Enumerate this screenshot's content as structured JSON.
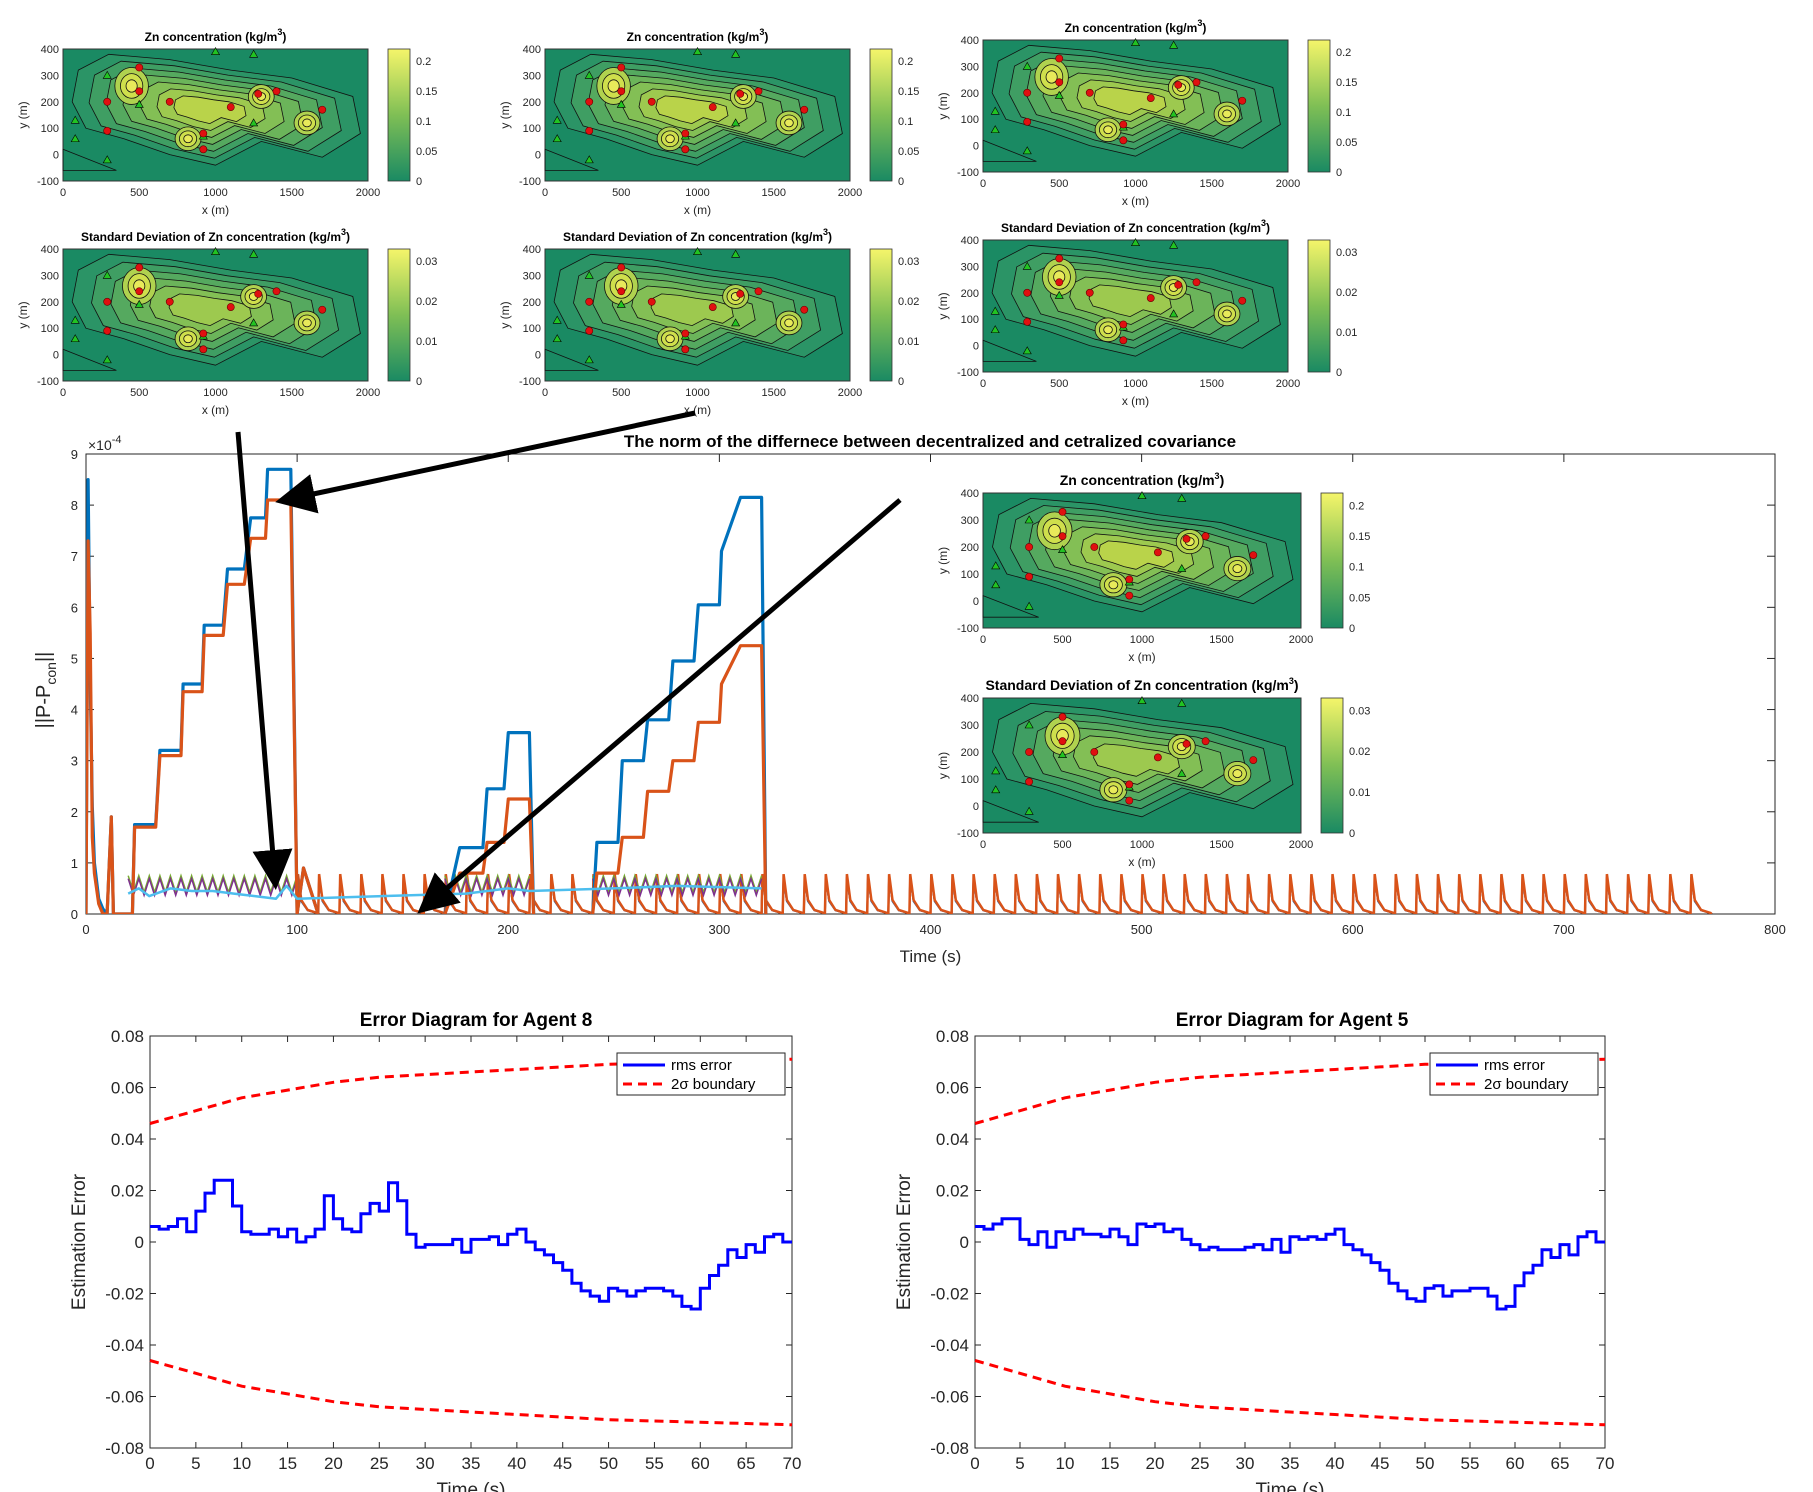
{
  "main_plot": {
    "title": "The norm of the differnece between decentralized and cetralized covariance",
    "exponent_label": "×10",
    "exponent_power": "-4",
    "ylabel_main": "||P-P",
    "ylabel_sub": "con",
    "ylabel_end": "||",
    "xlabel": "Time (s)",
    "xticks": [
      "0",
      "100",
      "200",
      "300",
      "400",
      "500",
      "600",
      "700",
      "800"
    ],
    "yticks": [
      "0",
      "1",
      "2",
      "3",
      "4",
      "5",
      "6",
      "7",
      "8",
      "9"
    ]
  },
  "chart_data": [
    {
      "type": "line",
      "title": "The norm of the differnece between decentralized and cetralized covariance",
      "xlabel": "Time (s)",
      "ylabel": "||P-Pcon||",
      "y_scale_factor": "1e-4",
      "xlim": [
        0,
        800
      ],
      "ylim": [
        0,
        9
      ],
      "grid": false,
      "series": [
        {
          "color": "#0072BD",
          "x": [
            0,
            1,
            2,
            3,
            4,
            6,
            8,
            10,
            12,
            13,
            15,
            18,
            22,
            23,
            33,
            35,
            45,
            46,
            55,
            56,
            65,
            67,
            75,
            78,
            85,
            86,
            97,
            100,
            103,
            110
          ],
          "y": [
            0,
            8.5,
            4.6,
            2.1,
            1.0,
            0.3,
            0.1,
            0,
            1.9,
            0,
            0,
            0,
            0,
            1.75,
            1.75,
            3.2,
            3.2,
            4.5,
            4.5,
            5.65,
            5.65,
            6.75,
            6.75,
            7.75,
            7.75,
            8.7,
            8.7,
            0,
            0.9,
            0
          ]
        },
        {
          "color": "#D95319",
          "x": [
            0,
            1,
            2,
            3,
            4,
            6,
            8,
            10,
            12,
            13,
            15,
            18,
            22,
            23,
            33,
            35,
            45,
            46,
            55,
            56,
            65,
            67,
            75,
            78,
            85,
            86,
            97,
            100,
            103,
            110
          ],
          "y": [
            0,
            7.3,
            5.5,
            1.5,
            0.8,
            0.2,
            0,
            0,
            1.9,
            0,
            0,
            0,
            0,
            1.7,
            1.7,
            3.1,
            3.1,
            4.35,
            4.35,
            5.45,
            5.45,
            6.45,
            6.45,
            7.35,
            7.35,
            8.1,
            8.1,
            0,
            0.9,
            0
          ]
        },
        {
          "color": "#0072BD",
          "x": [
            170,
            177,
            188,
            190,
            198,
            200,
            210,
            212
          ],
          "y": [
            0,
            1.3,
            1.3,
            2.45,
            2.45,
            3.55,
            3.55,
            0
          ]
        },
        {
          "color": "#D95319",
          "x": [
            170,
            177,
            188,
            190,
            198,
            200,
            210,
            212
          ],
          "y": [
            0,
            0.8,
            0.8,
            1.4,
            1.4,
            2.25,
            2.25,
            0
          ]
        },
        {
          "color": "#0072BD",
          "x": [
            240,
            242,
            252,
            254,
            264,
            266,
            276,
            278,
            288,
            290,
            300,
            301,
            310,
            320,
            322
          ],
          "y": [
            0,
            1.4,
            1.4,
            3.0,
            3.0,
            3.8,
            3.8,
            4.95,
            4.95,
            6.05,
            6.05,
            7.1,
            8.15,
            8.15,
            0
          ]
        },
        {
          "color": "#D95319",
          "x": [
            240,
            242,
            252,
            254,
            264,
            266,
            276,
            278,
            288,
            290,
            300,
            301,
            310,
            320,
            322
          ],
          "y": [
            0,
            0.8,
            0.8,
            1.5,
            1.5,
            2.4,
            2.4,
            3.0,
            3.0,
            3.75,
            3.75,
            4.5,
            5.25,
            5.25,
            0
          ]
        },
        {
          "color": "#4DBEEE",
          "x": [
            20,
            25,
            30,
            40,
            50,
            60,
            70,
            80,
            90,
            95,
            100,
            180,
            200,
            210,
            250,
            280,
            320
          ],
          "y": [
            0.4,
            0.5,
            0.35,
            0.5,
            0.45,
            0.45,
            0.4,
            0.35,
            0.3,
            0.55,
            0.3,
            0.4,
            0.5,
            0.45,
            0.5,
            0.55,
            0.5
          ]
        },
        {
          "color": "#D95319",
          "x": [
            330,
            770
          ],
          "y": [
            0.5,
            0.5
          ],
          "note": "repeating spikes every 10 s"
        }
      ]
    },
    {
      "type": "line",
      "title": "Error Diagram for Agent 8",
      "xlabel": "Time (s)",
      "ylabel": "Estimation Error",
      "xlim": [
        0,
        70
      ],
      "ylim": [
        -0.08,
        0.08
      ],
      "legend_position": "top-right",
      "series": [
        {
          "name": "rms error",
          "color": "#0000FF",
          "x": [
            0,
            1,
            2,
            3,
            4,
            5,
            6,
            7,
            8,
            9,
            10,
            11,
            12,
            13,
            14,
            15,
            16,
            17,
            18,
            19,
            20,
            21,
            22,
            23,
            24,
            25,
            26,
            27,
            28,
            29,
            30,
            31,
            32,
            33,
            34,
            35,
            36,
            37,
            38,
            39,
            40,
            41,
            42,
            43,
            44,
            45,
            46,
            47,
            48,
            49,
            50,
            51,
            52,
            53,
            54,
            55,
            56,
            57,
            58,
            59,
            60,
            61,
            62,
            63,
            64,
            65,
            66,
            67,
            68,
            69,
            70
          ],
          "y": [
            0.006,
            0.005,
            0.006,
            0.009,
            0.004,
            0.012,
            0.019,
            0.024,
            0.024,
            0.014,
            0.004,
            0.003,
            0.003,
            0.005,
            0.002,
            0.005,
            0.0,
            0.002,
            0.005,
            0.018,
            0.009,
            0.005,
            0.004,
            0.011,
            0.015,
            0.012,
            0.023,
            0.016,
            0.003,
            -0.002,
            -0.001,
            -0.001,
            -0.001,
            0.001,
            -0.004,
            0.001,
            0.001,
            0.002,
            -0.001,
            0.003,
            0.005,
            0.0,
            -0.003,
            -0.005,
            -0.008,
            -0.011,
            -0.016,
            -0.019,
            -0.021,
            -0.023,
            -0.018,
            -0.019,
            -0.021,
            -0.019,
            -0.018,
            -0.018,
            -0.019,
            -0.021,
            -0.025,
            -0.026,
            -0.018,
            -0.013,
            -0.009,
            -0.003,
            -0.006,
            -0.001,
            -0.004,
            0.002,
            0.003,
            0.0,
            0.0
          ]
        },
        {
          "name": "2σ boundary",
          "color": "#FF0000",
          "dashed": true,
          "x": [
            0,
            5,
            10,
            15,
            20,
            25,
            30,
            35,
            40,
            45,
            50,
            55,
            60,
            65,
            70
          ],
          "y": [
            0.046,
            0.051,
            0.056,
            0.059,
            0.062,
            0.064,
            0.065,
            0.066,
            0.067,
            0.068,
            0.069,
            0.0695,
            0.07,
            0.0705,
            0.071
          ]
        },
        {
          "color": "#FF0000",
          "dashed": true,
          "x": [
            0,
            5,
            10,
            15,
            20,
            25,
            30,
            35,
            40,
            45,
            50,
            55,
            60,
            65,
            70
          ],
          "y": [
            -0.046,
            -0.051,
            -0.056,
            -0.059,
            -0.062,
            -0.064,
            -0.065,
            -0.066,
            -0.067,
            -0.068,
            -0.069,
            -0.0695,
            -0.07,
            -0.0705,
            -0.071
          ]
        }
      ]
    },
    {
      "type": "line",
      "title": "Error Diagram for Agent 5",
      "xlabel": "Time (s)",
      "ylabel": "Estimation Error",
      "xlim": [
        0,
        70
      ],
      "ylim": [
        -0.08,
        0.08
      ],
      "legend_position": "top-right",
      "series": [
        {
          "name": "rms error",
          "color": "#0000FF",
          "x": [
            0,
            1,
            2,
            3,
            4,
            5,
            6,
            7,
            8,
            9,
            10,
            11,
            12,
            13,
            14,
            15,
            16,
            17,
            18,
            19,
            20,
            21,
            22,
            23,
            24,
            25,
            26,
            27,
            28,
            29,
            30,
            31,
            32,
            33,
            34,
            35,
            36,
            37,
            38,
            39,
            40,
            41,
            42,
            43,
            44,
            45,
            46,
            47,
            48,
            49,
            50,
            51,
            52,
            53,
            54,
            55,
            56,
            57,
            58,
            59,
            60,
            61,
            62,
            63,
            64,
            65,
            66,
            67,
            68,
            69,
            70
          ],
          "y": [
            0.006,
            0.005,
            0.007,
            0.009,
            0.009,
            0.001,
            -0.001,
            0.004,
            -0.002,
            0.004,
            0.001,
            0.005,
            0.003,
            0.003,
            0.002,
            0.005,
            0.002,
            -0.001,
            0.007,
            0.006,
            0.007,
            0.004,
            0.005,
            0.001,
            -0.001,
            -0.003,
            -0.002,
            -0.003,
            -0.003,
            -0.003,
            -0.002,
            -0.001,
            -0.003,
            0.001,
            -0.004,
            0.002,
            0.001,
            0.002,
            0.001,
            0.003,
            0.005,
            -0.001,
            -0.003,
            -0.005,
            -0.008,
            -0.011,
            -0.016,
            -0.019,
            -0.022,
            -0.023,
            -0.018,
            -0.017,
            -0.021,
            -0.019,
            -0.019,
            -0.018,
            -0.018,
            -0.021,
            -0.026,
            -0.025,
            -0.017,
            -0.012,
            -0.009,
            -0.003,
            -0.006,
            -0.001,
            -0.005,
            0.002,
            0.004,
            0.0,
            0.0
          ]
        },
        {
          "name": "2σ boundary",
          "color": "#FF0000",
          "dashed": true,
          "x": [
            0,
            5,
            10,
            15,
            20,
            25,
            30,
            35,
            40,
            45,
            50,
            55,
            60,
            65,
            70
          ],
          "y": [
            0.046,
            0.051,
            0.056,
            0.059,
            0.062,
            0.064,
            0.065,
            0.066,
            0.067,
            0.068,
            0.069,
            0.0695,
            0.07,
            0.0705,
            0.071
          ]
        },
        {
          "color": "#FF0000",
          "dashed": true,
          "x": [
            0,
            5,
            10,
            15,
            20,
            25,
            30,
            35,
            40,
            45,
            50,
            55,
            60,
            65,
            70
          ],
          "y": [
            -0.046,
            -0.051,
            -0.056,
            -0.059,
            -0.062,
            -0.064,
            -0.065,
            -0.066,
            -0.067,
            -0.068,
            -0.069,
            -0.0695,
            -0.07,
            -0.0705,
            -0.071
          ]
        }
      ]
    },
    {
      "type": "heatmap",
      "title": "Zn concentration (kg/m3)",
      "xlabel": "x (m)",
      "ylabel": "y (m)",
      "xlim": [
        0,
        2000
      ],
      "ylim": [
        -100,
        400
      ],
      "colorbar_ticks": [
        "0",
        "0.05",
        "0.1",
        "0.15",
        "0.2"
      ]
    },
    {
      "type": "heatmap",
      "title": "Standard Deviation  of Zn concentration (kg/m3)",
      "xlabel": "x (m)",
      "ylabel": "y (m)",
      "xlim": [
        0,
        2000
      ],
      "ylim": [
        -100,
        400
      ],
      "colorbar_ticks": [
        "0",
        "0.01",
        "0.02",
        "0.03"
      ]
    }
  ],
  "maps": {
    "conc_title_main": "Zn concentration (kg/m",
    "conc_title_end": ")",
    "std_title_main": "Standard Deviation  of Zn concentration (kg/m",
    "std_title_end": ")",
    "superscript": "3",
    "xlabel": "x (m)",
    "ylabel": "y (m)",
    "xticks": [
      "0",
      "500",
      "1000",
      "1500",
      "2000"
    ],
    "yticks": [
      "-100",
      "0",
      "100",
      "200",
      "300",
      "400"
    ],
    "conc_cbar_ticks": [
      "0",
      "0.05",
      "0.1",
      "0.15",
      "0.2"
    ],
    "std_cbar_ticks": [
      "0",
      "0.01",
      "0.02",
      "0.03"
    ],
    "red_points": [
      [
        290,
        90
      ],
      [
        500,
        330
      ],
      [
        500,
        240
      ],
      [
        290,
        200
      ],
      [
        700,
        200
      ],
      [
        920,
        20
      ],
      [
        920,
        80
      ],
      [
        1100,
        180
      ],
      [
        1280,
        230
      ],
      [
        1400,
        240
      ],
      [
        1700,
        170
      ]
    ],
    "green_points": [
      [
        80,
        130
      ],
      [
        80,
        60
      ],
      [
        290,
        -20
      ],
      [
        290,
        300
      ],
      [
        500,
        190
      ],
      [
        1000,
        390
      ],
      [
        1250,
        380
      ],
      [
        1250,
        120
      ],
      [
        920,
        70
      ]
    ]
  },
  "agent8": {
    "title": "Error Diagram for Agent 8",
    "xlabel": "Time (s)",
    "ylabel": "Estimation Error",
    "legend": [
      "rms error",
      "2σ boundary"
    ],
    "xticks": [
      "0",
      "5",
      "10",
      "15",
      "20",
      "25",
      "30",
      "35",
      "40",
      "45",
      "50",
      "55",
      "60",
      "65",
      "70"
    ],
    "yticks": [
      "-0.08",
      "-0.06",
      "-0.04",
      "-0.02",
      "0",
      "0.02",
      "0.04",
      "0.06",
      "0.08"
    ]
  },
  "agent5": {
    "title": "Error Diagram for Agent 5",
    "xlabel": "Time (s)",
    "ylabel": "Estimation Error",
    "legend": [
      "rms error",
      "2σ boundary"
    ],
    "xticks": [
      "0",
      "5",
      "10",
      "15",
      "20",
      "25",
      "30",
      "35",
      "40",
      "45",
      "50",
      "55",
      "60",
      "65",
      "70"
    ],
    "yticks": [
      "-0.08",
      "-0.06",
      "-0.04",
      "-0.02",
      "0",
      "0.02",
      "0.04",
      "0.06",
      "0.08"
    ]
  }
}
